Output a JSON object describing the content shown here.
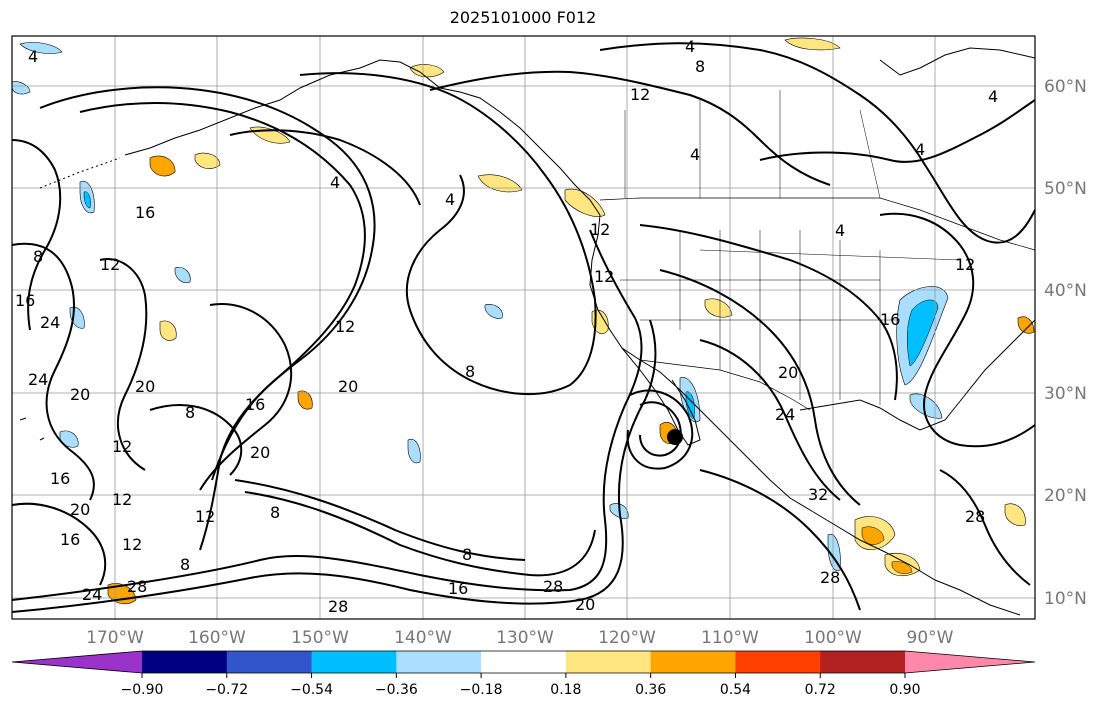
{
  "title": "2025101000 F012",
  "lon_ticks": [
    "170°W",
    "160°W",
    "150°W",
    "140°W",
    "130°W",
    "120°W",
    "110°W",
    "100°W",
    "90°W"
  ],
  "lat_ticks": [
    "60°N",
    "50°N",
    "40°N",
    "30°N",
    "20°N",
    "10°N"
  ],
  "colorbar": {
    "ticks": [
      "−0.90",
      "−0.72",
      "−0.54",
      "−0.36",
      "−0.18",
      "0.18",
      "0.36",
      "0.54",
      "0.72",
      "0.90"
    ],
    "colors": [
      "#9933cc",
      "#000080",
      "#3355cc",
      "#00bfff",
      "#aadeff",
      "#ffffff",
      "#ffe680",
      "#ffa500",
      "#ff4000",
      "#b22222",
      "#ff88aa"
    ]
  },
  "contour_labels": [
    "4",
    "8",
    "12",
    "16",
    "20",
    "24",
    "28",
    "32"
  ],
  "fill_colors": {
    "pos_low": "#ffe680",
    "pos_mid": "#ffa500",
    "neg_low": "#aadeff",
    "neg_mid": "#00bfff"
  }
}
